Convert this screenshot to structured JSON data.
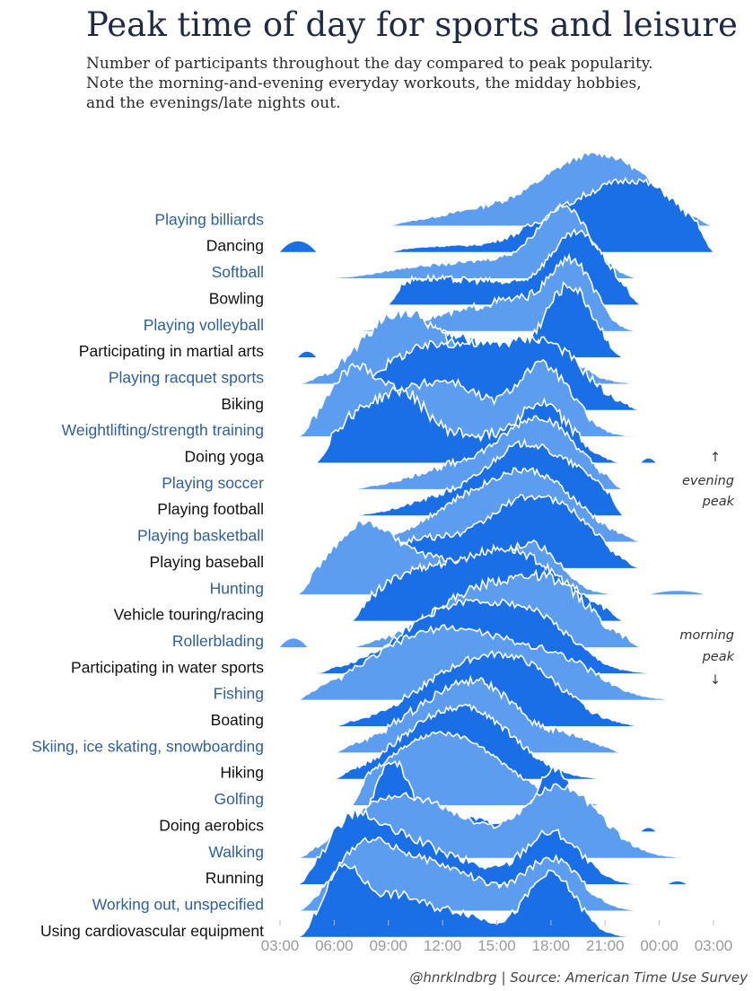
{
  "title": "Peak time of day for sports and leisure",
  "subtitle": [
    "Number of participants throughout the day compared to peak popularity.",
    "Note the morning-and-evening everyday workouts, the midday hobbies,",
    "and the evenings/late nights out."
  ],
  "source": "@hnrklndbrg | Source: American Time Use Survey",
  "annotations": {
    "evening": {
      "arrow": "↑",
      "lines": [
        "evening",
        "peak"
      ]
    },
    "morning": {
      "arrow": "↓",
      "lines": [
        "morning",
        "peak"
      ]
    }
  },
  "colors": {
    "label_light": "#2f5f98",
    "label_dark": "#111111",
    "fill_light": "#5c9df0",
    "fill_dark": "#1a6fe6",
    "outline": "#ffffff"
  },
  "chart_data": {
    "type": "area",
    "layout": "ridgeline",
    "x_unit": "hour of day (starting 03:00)",
    "xticks": [
      "03:00",
      "06:00",
      "09:00",
      "12:00",
      "15:00",
      "18:00",
      "21:00",
      "00:00",
      "03:00"
    ],
    "xlim": [
      3,
      27
    ],
    "y_unit": "share of peak participants",
    "ylim": [
      0,
      1
    ],
    "series": [
      {
        "name": "Playing billiards",
        "start": 9,
        "end": 27,
        "peaks": [
          {
            "h": 19.5,
            "a": 1.0,
            "w": 2.2
          },
          {
            "h": 22.5,
            "a": 0.78,
            "w": 2.0
          },
          {
            "h": 15.0,
            "a": 0.35,
            "w": 3.0
          }
        ],
        "noise": 0.04
      },
      {
        "name": "Dancing",
        "start": 9,
        "end": 27,
        "peaks": [
          {
            "h": 21.0,
            "a": 1.0,
            "w": 2.3
          },
          {
            "h": 24.0,
            "a": 0.85,
            "w": 2.0
          },
          {
            "h": 17.5,
            "a": 0.35,
            "w": 2.0
          },
          {
            "h": 12.0,
            "a": 0.12,
            "w": 2.0
          }
        ],
        "noise": 0.05,
        "blip": {
          "from": 3.0,
          "to": 5.0,
          "a": 0.15
        }
      },
      {
        "name": "Softball",
        "start": 5,
        "end": 23,
        "peaks": [
          {
            "h": 18.8,
            "a": 1.0,
            "w": 1.4
          },
          {
            "h": 15.5,
            "a": 0.3,
            "w": 2.5
          },
          {
            "h": 10.5,
            "a": 0.15,
            "w": 2.0
          }
        ],
        "noise": 0.04
      },
      {
        "name": "Bowling",
        "start": 9,
        "end": 23,
        "peaks": [
          {
            "h": 19.5,
            "a": 1.0,
            "w": 1.6
          },
          {
            "h": 10.5,
            "a": 0.32,
            "w": 1.8
          },
          {
            "h": 14.5,
            "a": 0.3,
            "w": 2.0
          }
        ],
        "noise": 0.05
      },
      {
        "name": "Playing volleyball",
        "start": 7,
        "end": 23,
        "peaks": [
          {
            "h": 19.2,
            "a": 1.0,
            "w": 1.2
          },
          {
            "h": 16.0,
            "a": 0.45,
            "w": 2.0
          },
          {
            "h": 12.0,
            "a": 0.2,
            "w": 2.0
          }
        ],
        "noise": 0.06
      },
      {
        "name": "Participating in martial arts",
        "start": 6,
        "end": 22,
        "peaks": [
          {
            "h": 19.0,
            "a": 1.0,
            "w": 1.3
          },
          {
            "h": 10.5,
            "a": 0.35,
            "w": 1.5
          },
          {
            "h": 13.5,
            "a": 0.2,
            "w": 1.5
          }
        ],
        "noise": 0.08,
        "blip": {
          "from": 4.0,
          "to": 5.0,
          "a": 0.08
        }
      },
      {
        "name": "Playing racquet sports",
        "start": 4,
        "end": 23,
        "peaks": [
          {
            "h": 8.5,
            "a": 0.8,
            "w": 1.8
          },
          {
            "h": 10.5,
            "a": 1.0,
            "w": 1.8
          },
          {
            "h": 17.5,
            "a": 0.75,
            "w": 1.8
          },
          {
            "h": 14.0,
            "a": 0.4,
            "w": 2.0
          }
        ],
        "noise": 0.08
      },
      {
        "name": "Biking",
        "start": 5,
        "end": 23,
        "peaks": [
          {
            "h": 10.0,
            "a": 0.8,
            "w": 2.5
          },
          {
            "h": 14.0,
            "a": 0.85,
            "w": 2.5
          },
          {
            "h": 18.0,
            "a": 1.0,
            "w": 2.0
          }
        ],
        "noise": 0.07
      },
      {
        "name": "Weightlifting/strength training",
        "start": 4,
        "end": 24,
        "peaks": [
          {
            "h": 7.0,
            "a": 0.85,
            "w": 1.4
          },
          {
            "h": 10.5,
            "a": 0.55,
            "w": 2.0
          },
          {
            "h": 17.5,
            "a": 1.0,
            "w": 1.6
          },
          {
            "h": 13.0,
            "a": 0.45,
            "w": 1.5
          }
        ],
        "noise": 0.07
      },
      {
        "name": "Doing yoga",
        "start": 5,
        "end": 22,
        "peaks": [
          {
            "h": 7.5,
            "a": 0.85,
            "w": 1.5
          },
          {
            "h": 10.0,
            "a": 0.9,
            "w": 1.2
          },
          {
            "h": 17.5,
            "a": 1.0,
            "w": 1.6
          },
          {
            "h": 13.0,
            "a": 0.45,
            "w": 1.8
          }
        ],
        "noise": 0.08,
        "blip": {
          "from": 23.0,
          "to": 23.8,
          "a": 0.06
        }
      },
      {
        "name": "Playing soccer",
        "start": 7,
        "end": 22,
        "peaks": [
          {
            "h": 17.5,
            "a": 1.0,
            "w": 2.0
          },
          {
            "h": 13.0,
            "a": 0.35,
            "w": 2.5
          }
        ],
        "noise": 0.05
      },
      {
        "name": "Playing football",
        "start": 7,
        "end": 22,
        "peaks": [
          {
            "h": 16.5,
            "a": 1.0,
            "w": 2.0
          },
          {
            "h": 20.0,
            "a": 0.4,
            "w": 1.5
          },
          {
            "h": 12.0,
            "a": 0.25,
            "w": 2.0
          }
        ],
        "noise": 0.05
      },
      {
        "name": "Playing basketball",
        "start": 8,
        "end": 23,
        "peaks": [
          {
            "h": 16.8,
            "a": 1.0,
            "w": 2.5
          },
          {
            "h": 12.5,
            "a": 0.35,
            "w": 2.0
          }
        ],
        "noise": 0.05
      },
      {
        "name": "Playing baseball",
        "start": 5,
        "end": 23,
        "peaks": [
          {
            "h": 16.5,
            "a": 1.0,
            "w": 2.0
          },
          {
            "h": 19.5,
            "a": 0.5,
            "w": 1.5
          },
          {
            "h": 11.0,
            "a": 0.45,
            "w": 2.5
          }
        ],
        "noise": 0.05
      },
      {
        "name": "Hunting",
        "start": 4,
        "end": 25,
        "peaks": [
          {
            "h": 7.5,
            "a": 1.0,
            "w": 1.8
          },
          {
            "h": 17.0,
            "a": 0.72,
            "w": 1.5
          },
          {
            "h": 12.0,
            "a": 0.5,
            "w": 2.5
          }
        ],
        "noise": 0.05,
        "blip": {
          "from": 23.5,
          "to": 26.5,
          "a": 0.05
        }
      },
      {
        "name": "Vehicle touring/racing",
        "start": 7,
        "end": 22,
        "peaks": [
          {
            "h": 15.5,
            "a": 1.0,
            "w": 3.0
          },
          {
            "h": 10.0,
            "a": 0.5,
            "w": 2.0
          }
        ],
        "noise": 0.06
      },
      {
        "name": "Rollerblading",
        "start": 7,
        "end": 23,
        "peaks": [
          {
            "h": 14.5,
            "a": 1.0,
            "w": 3.0
          },
          {
            "h": 18.5,
            "a": 0.7,
            "w": 2.0
          }
        ],
        "noise": 0.07,
        "blip": {
          "from": 3.0,
          "to": 4.5,
          "a": 0.12
        }
      },
      {
        "name": "Participating in water sports",
        "start": 5,
        "end": 24,
        "peaks": [
          {
            "h": 13.0,
            "a": 1.0,
            "w": 3.2
          },
          {
            "h": 17.5,
            "a": 0.5,
            "w": 2.0
          }
        ],
        "noise": 0.05
      },
      {
        "name": "Fishing",
        "start": 4,
        "end": 25,
        "peaks": [
          {
            "h": 10.0,
            "a": 0.85,
            "w": 3.0
          },
          {
            "h": 14.5,
            "a": 1.0,
            "w": 3.2
          },
          {
            "h": 19.0,
            "a": 0.45,
            "w": 2.0
          }
        ],
        "noise": 0.05
      },
      {
        "name": "Boating",
        "start": 6,
        "end": 23,
        "peaks": [
          {
            "h": 13.5,
            "a": 1.0,
            "w": 3.0
          },
          {
            "h": 17.0,
            "a": 0.55,
            "w": 2.2
          }
        ],
        "noise": 0.05
      },
      {
        "name": "Skiing, ice skating, snowboarding",
        "start": 6,
        "end": 22,
        "peaks": [
          {
            "h": 11.5,
            "a": 0.85,
            "w": 2.5
          },
          {
            "h": 14.5,
            "a": 1.0,
            "w": 2.0
          },
          {
            "h": 19.0,
            "a": 0.3,
            "w": 1.5
          }
        ],
        "noise": 0.06
      },
      {
        "name": "Hiking",
        "start": 6,
        "end": 21,
        "peaks": [
          {
            "h": 11.5,
            "a": 1.0,
            "w": 2.5
          },
          {
            "h": 14.5,
            "a": 0.8,
            "w": 2.2
          }
        ],
        "noise": 0.05
      },
      {
        "name": "Golfing",
        "start": 7,
        "end": 21,
        "peaks": [
          {
            "h": 12.0,
            "a": 1.0,
            "w": 3.2
          }
        ],
        "noise": 0.03
      },
      {
        "name": "Doing aerobics",
        "start": 5,
        "end": 22,
        "peaks": [
          {
            "h": 9.2,
            "a": 1.0,
            "w": 0.9
          },
          {
            "h": 18.2,
            "a": 0.9,
            "w": 1.0
          },
          {
            "h": 13.0,
            "a": 0.2,
            "w": 2.0
          }
        ],
        "noise": 0.06,
        "blip": {
          "from": 23.0,
          "to": 23.8,
          "a": 0.05
        }
      },
      {
        "name": "Walking",
        "start": 4,
        "end": 26,
        "peaks": [
          {
            "h": 8.5,
            "a": 0.7,
            "w": 2.0
          },
          {
            "h": 12.0,
            "a": 0.55,
            "w": 2.0
          },
          {
            "h": 18.5,
            "a": 1.0,
            "w": 2.2
          }
        ],
        "noise": 0.05
      },
      {
        "name": "Running",
        "start": 4,
        "end": 25,
        "peaks": [
          {
            "h": 7.0,
            "a": 1.0,
            "w": 1.4
          },
          {
            "h": 10.0,
            "a": 0.6,
            "w": 1.5
          },
          {
            "h": 18.0,
            "a": 0.8,
            "w": 1.6
          },
          {
            "h": 13.0,
            "a": 0.3,
            "w": 1.5
          }
        ],
        "noise": 0.07,
        "blip": {
          "from": 24.5,
          "to": 25.5,
          "a": 0.04
        }
      },
      {
        "name": "Working out, unspecified",
        "start": 4,
        "end": 24,
        "peaks": [
          {
            "h": 7.5,
            "a": 1.0,
            "w": 1.5
          },
          {
            "h": 10.5,
            "a": 0.75,
            "w": 1.8
          },
          {
            "h": 18.0,
            "a": 0.9,
            "w": 1.6
          },
          {
            "h": 13.5,
            "a": 0.4,
            "w": 1.5
          }
        ],
        "noise": 0.05
      },
      {
        "name": "Using cardiovascular equipment",
        "start": 4,
        "end": 24,
        "peaks": [
          {
            "h": 6.5,
            "a": 1.0,
            "w": 1.1
          },
          {
            "h": 9.5,
            "a": 0.6,
            "w": 1.5
          },
          {
            "h": 18.0,
            "a": 0.95,
            "w": 1.4
          },
          {
            "h": 13.0,
            "a": 0.35,
            "w": 1.5
          }
        ],
        "noise": 0.06
      }
    ]
  }
}
